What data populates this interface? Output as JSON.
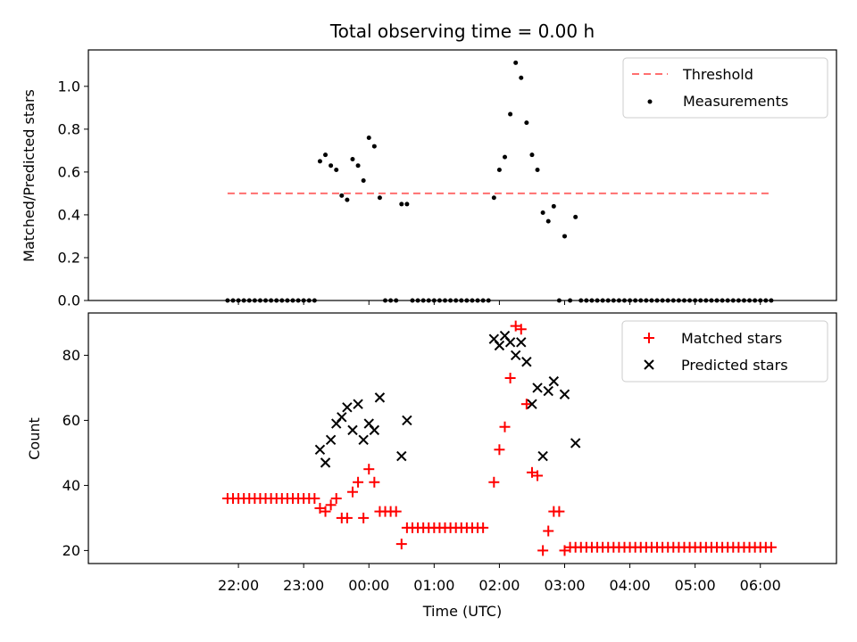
{
  "title": "Total observing time = 0.00 h",
  "xlabel": "Time (UTC)",
  "x_tick_labels": [
    "22:00",
    "23:00",
    "00:00",
    "01:00",
    "02:00",
    "03:00",
    "04:00",
    "05:00",
    "06:00"
  ],
  "colors": {
    "threshold": "#ff6f6f",
    "matched": "#ff0000",
    "predicted": "#000000",
    "measurements": "#000000"
  },
  "chart_data": [
    {
      "type": "scatter",
      "ylabel": "Matched/Predicted stars",
      "xlim": [
        -138,
        550
      ],
      "ylim": [
        0,
        1.17
      ],
      "x_unit": "minutes after 22:00 UTC",
      "y_ticks": [
        "0.0",
        "0.2",
        "0.4",
        "0.6",
        "0.8",
        "1.0"
      ],
      "legend": {
        "position": "upper right",
        "entries": [
          "Threshold",
          "Measurements"
        ]
      },
      "threshold": {
        "name": "Threshold",
        "value": 0.5,
        "x_range": [
          -10,
          490
        ],
        "style": "dashed"
      },
      "series": [
        {
          "name": "Measurements",
          "marker": "dot",
          "points": [
            [
              -10,
              0
            ],
            [
              -5,
              0
            ],
            [
              0,
              0
            ],
            [
              5,
              0
            ],
            [
              10,
              0
            ],
            [
              15,
              0
            ],
            [
              20,
              0
            ],
            [
              25,
              0
            ],
            [
              30,
              0
            ],
            [
              35,
              0
            ],
            [
              40,
              0
            ],
            [
              45,
              0
            ],
            [
              50,
              0
            ],
            [
              55,
              0
            ],
            [
              60,
              0
            ],
            [
              65,
              0
            ],
            [
              70,
              0
            ],
            [
              75,
              0.65
            ],
            [
              80,
              0.68
            ],
            [
              85,
              0.63
            ],
            [
              90,
              0.61
            ],
            [
              95,
              0.49
            ],
            [
              100,
              0.47
            ],
            [
              105,
              0.66
            ],
            [
              110,
              0.63
            ],
            [
              115,
              0.56
            ],
            [
              120,
              0.76
            ],
            [
              125,
              0.72
            ],
            [
              130,
              0.48
            ],
            [
              135,
              0
            ],
            [
              140,
              0
            ],
            [
              145,
              0
            ],
            [
              150,
              0.45
            ],
            [
              155,
              0.45
            ],
            [
              160,
              0
            ],
            [
              165,
              0
            ],
            [
              170,
              0
            ],
            [
              175,
              0
            ],
            [
              180,
              0
            ],
            [
              185,
              0
            ],
            [
              190,
              0
            ],
            [
              195,
              0
            ],
            [
              200,
              0
            ],
            [
              205,
              0
            ],
            [
              210,
              0
            ],
            [
              215,
              0
            ],
            [
              220,
              0
            ],
            [
              225,
              0
            ],
            [
              230,
              0
            ],
            [
              235,
              0.48
            ],
            [
              240,
              0.61
            ],
            [
              245,
              0.67
            ],
            [
              250,
              0.87
            ],
            [
              255,
              1.11
            ],
            [
              260,
              1.04
            ],
            [
              265,
              0.83
            ],
            [
              270,
              0.68
            ],
            [
              275,
              0.61
            ],
            [
              280,
              0.41
            ],
            [
              285,
              0.37
            ],
            [
              290,
              0.44
            ],
            [
              295,
              0
            ],
            [
              300,
              0.3
            ],
            [
              305,
              0
            ],
            [
              310,
              0.39
            ],
            [
              315,
              0
            ],
            [
              320,
              0
            ],
            [
              325,
              0
            ],
            [
              330,
              0
            ],
            [
              335,
              0
            ],
            [
              340,
              0
            ],
            [
              345,
              0
            ],
            [
              350,
              0
            ],
            [
              355,
              0
            ],
            [
              360,
              0
            ],
            [
              365,
              0
            ],
            [
              370,
              0
            ],
            [
              375,
              0
            ],
            [
              380,
              0
            ],
            [
              385,
              0
            ],
            [
              390,
              0
            ],
            [
              395,
              0
            ],
            [
              400,
              0
            ],
            [
              405,
              0
            ],
            [
              410,
              0
            ],
            [
              415,
              0
            ],
            [
              420,
              0
            ],
            [
              425,
              0
            ],
            [
              430,
              0
            ],
            [
              435,
              0
            ],
            [
              440,
              0
            ],
            [
              445,
              0
            ],
            [
              450,
              0
            ],
            [
              455,
              0
            ],
            [
              460,
              0
            ],
            [
              465,
              0
            ],
            [
              470,
              0
            ],
            [
              475,
              0
            ],
            [
              480,
              0
            ],
            [
              485,
              0
            ],
            [
              490,
              0
            ]
          ]
        }
      ]
    },
    {
      "type": "scatter",
      "ylabel": "Count",
      "xlim": [
        -138,
        550
      ],
      "ylim": [
        16,
        93
      ],
      "x_unit": "minutes after 22:00 UTC",
      "y_ticks": [
        "20",
        "40",
        "60",
        "80"
      ],
      "legend": {
        "position": "upper right",
        "entries": [
          "Matched stars",
          "Predicted stars"
        ]
      },
      "series": [
        {
          "name": "Matched stars",
          "marker": "plus",
          "points": [
            [
              -10,
              36
            ],
            [
              -5,
              36
            ],
            [
              0,
              36
            ],
            [
              5,
              36
            ],
            [
              10,
              36
            ],
            [
              15,
              36
            ],
            [
              20,
              36
            ],
            [
              25,
              36
            ],
            [
              30,
              36
            ],
            [
              35,
              36
            ],
            [
              40,
              36
            ],
            [
              45,
              36
            ],
            [
              50,
              36
            ],
            [
              55,
              36
            ],
            [
              60,
              36
            ],
            [
              65,
              36
            ],
            [
              70,
              36
            ],
            [
              75,
              33
            ],
            [
              80,
              32
            ],
            [
              85,
              34
            ],
            [
              90,
              36
            ],
            [
              95,
              30
            ],
            [
              100,
              30
            ],
            [
              105,
              38
            ],
            [
              110,
              41
            ],
            [
              115,
              30
            ],
            [
              120,
              45
            ],
            [
              125,
              41
            ],
            [
              130,
              32
            ],
            [
              135,
              32
            ],
            [
              140,
              32
            ],
            [
              145,
              32
            ],
            [
              150,
              22
            ],
            [
              155,
              27
            ],
            [
              160,
              27
            ],
            [
              165,
              27
            ],
            [
              170,
              27
            ],
            [
              175,
              27
            ],
            [
              180,
              27
            ],
            [
              185,
              27
            ],
            [
              190,
              27
            ],
            [
              195,
              27
            ],
            [
              200,
              27
            ],
            [
              205,
              27
            ],
            [
              210,
              27
            ],
            [
              215,
              27
            ],
            [
              220,
              27
            ],
            [
              225,
              27
            ],
            [
              235,
              41
            ],
            [
              240,
              51
            ],
            [
              245,
              58
            ],
            [
              250,
              73
            ],
            [
              255,
              89
            ],
            [
              260,
              88
            ],
            [
              265,
              65
            ],
            [
              270,
              44
            ],
            [
              275,
              43
            ],
            [
              280,
              20
            ],
            [
              285,
              26
            ],
            [
              290,
              32
            ],
            [
              295,
              32
            ],
            [
              300,
              20
            ],
            [
              305,
              21
            ],
            [
              310,
              21
            ],
            [
              315,
              21
            ],
            [
              320,
              21
            ],
            [
              325,
              21
            ],
            [
              330,
              21
            ],
            [
              335,
              21
            ],
            [
              340,
              21
            ],
            [
              345,
              21
            ],
            [
              350,
              21
            ],
            [
              355,
              21
            ],
            [
              360,
              21
            ],
            [
              365,
              21
            ],
            [
              370,
              21
            ],
            [
              375,
              21
            ],
            [
              380,
              21
            ],
            [
              385,
              21
            ],
            [
              390,
              21
            ],
            [
              395,
              21
            ],
            [
              400,
              21
            ],
            [
              405,
              21
            ],
            [
              410,
              21
            ],
            [
              415,
              21
            ],
            [
              420,
              21
            ],
            [
              425,
              21
            ],
            [
              430,
              21
            ],
            [
              435,
              21
            ],
            [
              440,
              21
            ],
            [
              445,
              21
            ],
            [
              450,
              21
            ],
            [
              455,
              21
            ],
            [
              460,
              21
            ],
            [
              465,
              21
            ],
            [
              470,
              21
            ],
            [
              475,
              21
            ],
            [
              480,
              21
            ],
            [
              485,
              21
            ],
            [
              490,
              21
            ]
          ]
        },
        {
          "name": "Predicted stars",
          "marker": "x",
          "points": [
            [
              75,
              51
            ],
            [
              80,
              47
            ],
            [
              85,
              54
            ],
            [
              90,
              59
            ],
            [
              95,
              61
            ],
            [
              100,
              64
            ],
            [
              105,
              57
            ],
            [
              110,
              65
            ],
            [
              115,
              54
            ],
            [
              120,
              59
            ],
            [
              125,
              57
            ],
            [
              130,
              67
            ],
            [
              150,
              49
            ],
            [
              155,
              60
            ],
            [
              235,
              85
            ],
            [
              240,
              83
            ],
            [
              245,
              86
            ],
            [
              250,
              84
            ],
            [
              255,
              80
            ],
            [
              260,
              84
            ],
            [
              265,
              78
            ],
            [
              270,
              65
            ],
            [
              275,
              70
            ],
            [
              280,
              49
            ],
            [
              285,
              69
            ],
            [
              290,
              72
            ],
            [
              300,
              68
            ],
            [
              310,
              53
            ]
          ]
        }
      ]
    }
  ]
}
